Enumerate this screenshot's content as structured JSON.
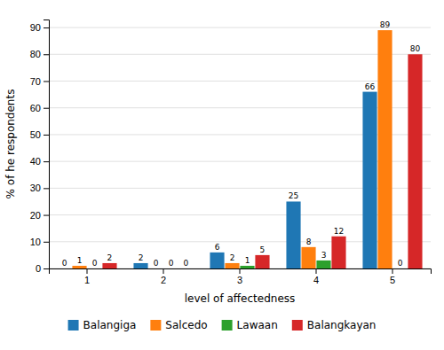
{
  "chart_data": {
    "type": "bar",
    "categories": [
      1,
      2,
      3,
      4,
      5
    ],
    "series": [
      {
        "name": "Balangiga",
        "values": [
          0,
          2,
          6,
          25,
          66
        ]
      },
      {
        "name": "Salcedo",
        "values": [
          1,
          0,
          2,
          8,
          89
        ]
      },
      {
        "name": "Lawaan",
        "values": [
          0,
          0,
          1,
          3,
          0
        ]
      },
      {
        "name": "Balangkayan",
        "values": [
          2,
          0,
          5,
          12,
          80
        ]
      }
    ],
    "xlabel": "level of affectedness",
    "ylabel": "% of he respondents",
    "ylim": [
      0,
      93
    ],
    "yticks": [
      0,
      10,
      20,
      30,
      40,
      50,
      60,
      70,
      80,
      90
    ],
    "grid": true,
    "data_labels": true,
    "legend": "bottom"
  }
}
